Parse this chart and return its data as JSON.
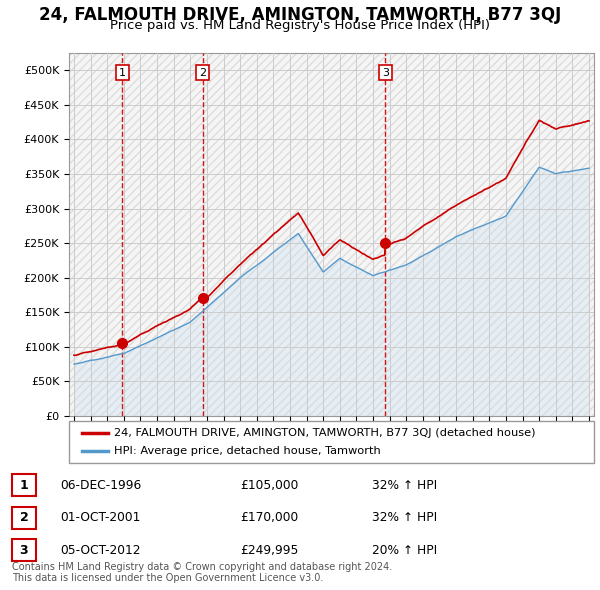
{
  "title": "24, FALMOUTH DRIVE, AMINGTON, TAMWORTH, B77 3QJ",
  "subtitle": "Price paid vs. HM Land Registry's House Price Index (HPI)",
  "ylim": [
    0,
    525000
  ],
  "yticks": [
    0,
    50000,
    100000,
    150000,
    200000,
    250000,
    300000,
    350000,
    400000,
    450000,
    500000
  ],
  "ytick_labels": [
    "£0",
    "£50K",
    "£100K",
    "£150K",
    "£200K",
    "£250K",
    "£300K",
    "£350K",
    "£400K",
    "£450K",
    "£500K"
  ],
  "xlim_start": 1993.7,
  "xlim_end": 2025.3,
  "sale_dates": [
    1996.92,
    2001.75,
    2012.75
  ],
  "sale_prices": [
    105000,
    170000,
    249995
  ],
  "sale_labels": [
    "1",
    "2",
    "3"
  ],
  "property_line_color": "#cc0000",
  "hpi_line_color": "#5599cc",
  "hpi_fill_color": "#cce0f0",
  "sale_dot_color": "#cc0000",
  "sale_vline_color": "#cc0000",
  "grid_color": "#cccccc",
  "legend_property": "24, FALMOUTH DRIVE, AMINGTON, TAMWORTH, B77 3QJ (detached house)",
  "legend_hpi": "HPI: Average price, detached house, Tamworth",
  "table_rows": [
    [
      "1",
      "06-DEC-1996",
      "£105,000",
      "32% ↑ HPI"
    ],
    [
      "2",
      "01-OCT-2001",
      "£170,000",
      "32% ↑ HPI"
    ],
    [
      "3",
      "05-OCT-2012",
      "£249,995",
      "20% ↑ HPI"
    ]
  ],
  "footer": "Contains HM Land Registry data © Crown copyright and database right 2024.\nThis data is licensed under the Open Government Licence v3.0.",
  "title_fontsize": 12,
  "subtitle_fontsize": 9.5,
  "tick_fontsize": 8,
  "label_fontsize": 8
}
